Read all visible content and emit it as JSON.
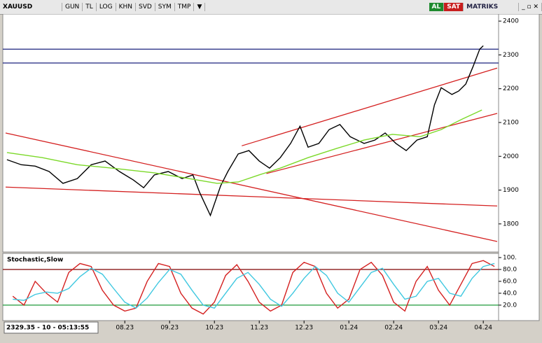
{
  "toolbar": {
    "symbol": "XAUUSD",
    "buttons": [
      "GUN",
      "TL",
      "LOG",
      "KHN",
      "SVD",
      "SYM",
      "TMP"
    ],
    "buy": "AL",
    "sell": "SAT",
    "brand": "MATRIKS"
  },
  "status": "2329.35 - 10 - 05:13:55",
  "chart_data": [
    {
      "type": "line",
      "xlim": [
        -1.66,
        9.31
      ],
      "ylim": [
        1721,
        2421
      ],
      "yticks": [
        1800,
        1900,
        2000,
        2100,
        2200,
        2300,
        2400
      ],
      "series": [
        {
          "color": "#000000",
          "x": [
            -1.63,
            -1.31,
            -1.0,
            -0.69,
            -0.38,
            -0.06,
            0.25,
            0.56,
            0.88,
            1.19,
            1.42,
            1.66,
            1.97,
            2.28,
            2.52,
            2.67,
            2.91,
            3.14,
            3.3,
            3.53,
            3.77,
            4.0,
            4.23,
            4.47,
            4.7,
            4.91,
            5.09,
            5.33,
            5.56,
            5.8,
            6.03,
            6.34,
            6.58,
            6.81,
            7.05,
            7.28,
            7.52,
            7.75,
            7.91,
            8.06,
            8.3,
            8.45,
            8.61,
            8.77,
            8.92,
            9.0
          ],
          "values": [
            1990,
            1975,
            1971,
            1955,
            1920,
            1934,
            1975,
            1986,
            1955,
            1930,
            1907,
            1945,
            1955,
            1934,
            1945,
            1893,
            1825,
            1913,
            1955,
            2007,
            2017,
            1986,
            1965,
            1996,
            2038,
            2089,
            2027,
            2038,
            2079,
            2094,
            2058,
            2038,
            2048,
            2069,
            2038,
            2017,
            2048,
            2058,
            2152,
            2203,
            2183,
            2193,
            2214,
            2265,
            2317,
            2327
          ]
        },
        {
          "color": "#7cd92a",
          "x": [
            -1.63,
            -0.84,
            -0.06,
            0.72,
            1.66,
            2.44,
            3.06,
            3.53,
            4.0,
            4.47,
            5.09,
            5.72,
            6.34,
            6.97,
            7.59,
            8.06,
            8.53,
            8.97
          ],
          "values": [
            2011,
            1996,
            1975,
            1965,
            1951,
            1934,
            1920,
            1924,
            1945,
            1965,
            1996,
            2023,
            2048,
            2065,
            2058,
            2079,
            2110,
            2137
          ]
        }
      ],
      "trendlines": [
        {
          "color": "#d42020",
          "x": [
            -1.66,
            9.31
          ],
          "y": [
            2069,
            1748
          ]
        },
        {
          "color": "#d42020",
          "x": [
            -1.66,
            9.31
          ],
          "y": [
            1909,
            1853
          ]
        },
        {
          "color": "#d42020",
          "x": [
            3.61,
            9.31
          ],
          "y": [
            2031,
            2261
          ]
        },
        {
          "color": "#d42020",
          "x": [
            4.16,
            9.31
          ],
          "y": [
            1949,
            2127
          ]
        }
      ],
      "levels": [
        {
          "value": 2317,
          "color": "#1a237e"
        },
        {
          "value": 2276,
          "color": "#1a237e"
        }
      ]
    },
    {
      "type": "line",
      "title": "Stochastic,Slow",
      "xlim": [
        -1.66,
        9.31
      ],
      "ylim": [
        -6,
        107
      ],
      "yticks": [
        {
          "value": 20,
          "label": "20.0"
        },
        {
          "value": 40,
          "label": "40.0"
        },
        {
          "value": 60,
          "label": "60.0"
        },
        {
          "value": 80,
          "label": "80.0"
        },
        {
          "value": 100,
          "label": "100."
        }
      ],
      "xticks": [
        {
          "value": 1,
          "label": "08.23"
        },
        {
          "value": 2,
          "label": "09.23"
        },
        {
          "value": 3,
          "label": "10.23"
        },
        {
          "value": 4,
          "label": "11.23"
        },
        {
          "value": 5,
          "label": "12.23"
        },
        {
          "value": 6,
          "label": "01.24"
        },
        {
          "value": 7,
          "label": "02.24"
        },
        {
          "value": 8,
          "label": "03.24"
        },
        {
          "value": 9,
          "label": "04.24"
        }
      ],
      "series": [
        {
          "color": "#d42020",
          "x": [
            -1.5,
            -1.25,
            -1.0,
            -0.75,
            -0.5,
            -0.25,
            0,
            0.25,
            0.5,
            0.75,
            1.0,
            1.25,
            1.5,
            1.75,
            2.0,
            2.25,
            2.5,
            2.75,
            3.0,
            3.25,
            3.5,
            3.75,
            4.0,
            4.25,
            4.5,
            4.75,
            5.0,
            5.25,
            5.5,
            5.75,
            6.0,
            6.25,
            6.5,
            6.75,
            7.0,
            7.25,
            7.5,
            7.75,
            8.0,
            8.25,
            8.5,
            8.75,
            9.0,
            9.25
          ],
          "values": [
            35,
            20,
            60,
            40,
            25,
            75,
            90,
            85,
            45,
            20,
            10,
            15,
            60,
            90,
            85,
            40,
            15,
            5,
            25,
            70,
            88,
            60,
            25,
            10,
            20,
            75,
            92,
            85,
            40,
            15,
            30,
            80,
            92,
            70,
            25,
            10,
            60,
            85,
            45,
            20,
            55,
            90,
            95,
            85
          ]
        },
        {
          "color": "#3fc8e0",
          "x": [
            -1.5,
            -1.25,
            -1.0,
            -0.75,
            -0.5,
            -0.25,
            0,
            0.25,
            0.5,
            0.75,
            1.0,
            1.25,
            1.5,
            1.75,
            2.0,
            2.25,
            2.5,
            2.75,
            3.0,
            3.25,
            3.5,
            3.75,
            4.0,
            4.25,
            4.5,
            4.75,
            5.0,
            5.25,
            5.5,
            5.75,
            6.0,
            6.25,
            6.5,
            6.75,
            7.0,
            7.25,
            7.5,
            7.75,
            8.0,
            8.25,
            8.5,
            8.75,
            9.0,
            9.25
          ],
          "values": [
            30,
            28,
            38,
            42,
            40,
            48,
            68,
            82,
            72,
            48,
            25,
            15,
            32,
            58,
            80,
            72,
            45,
            20,
            15,
            40,
            65,
            75,
            55,
            30,
            18,
            40,
            65,
            85,
            70,
            40,
            25,
            50,
            75,
            82,
            55,
            30,
            35,
            60,
            65,
            40,
            35,
            65,
            85,
            90
          ]
        }
      ],
      "levels": [
        {
          "value": 80,
          "color": "#8b1a1a"
        },
        {
          "value": 20,
          "color": "#1e9a3a"
        }
      ]
    }
  ]
}
